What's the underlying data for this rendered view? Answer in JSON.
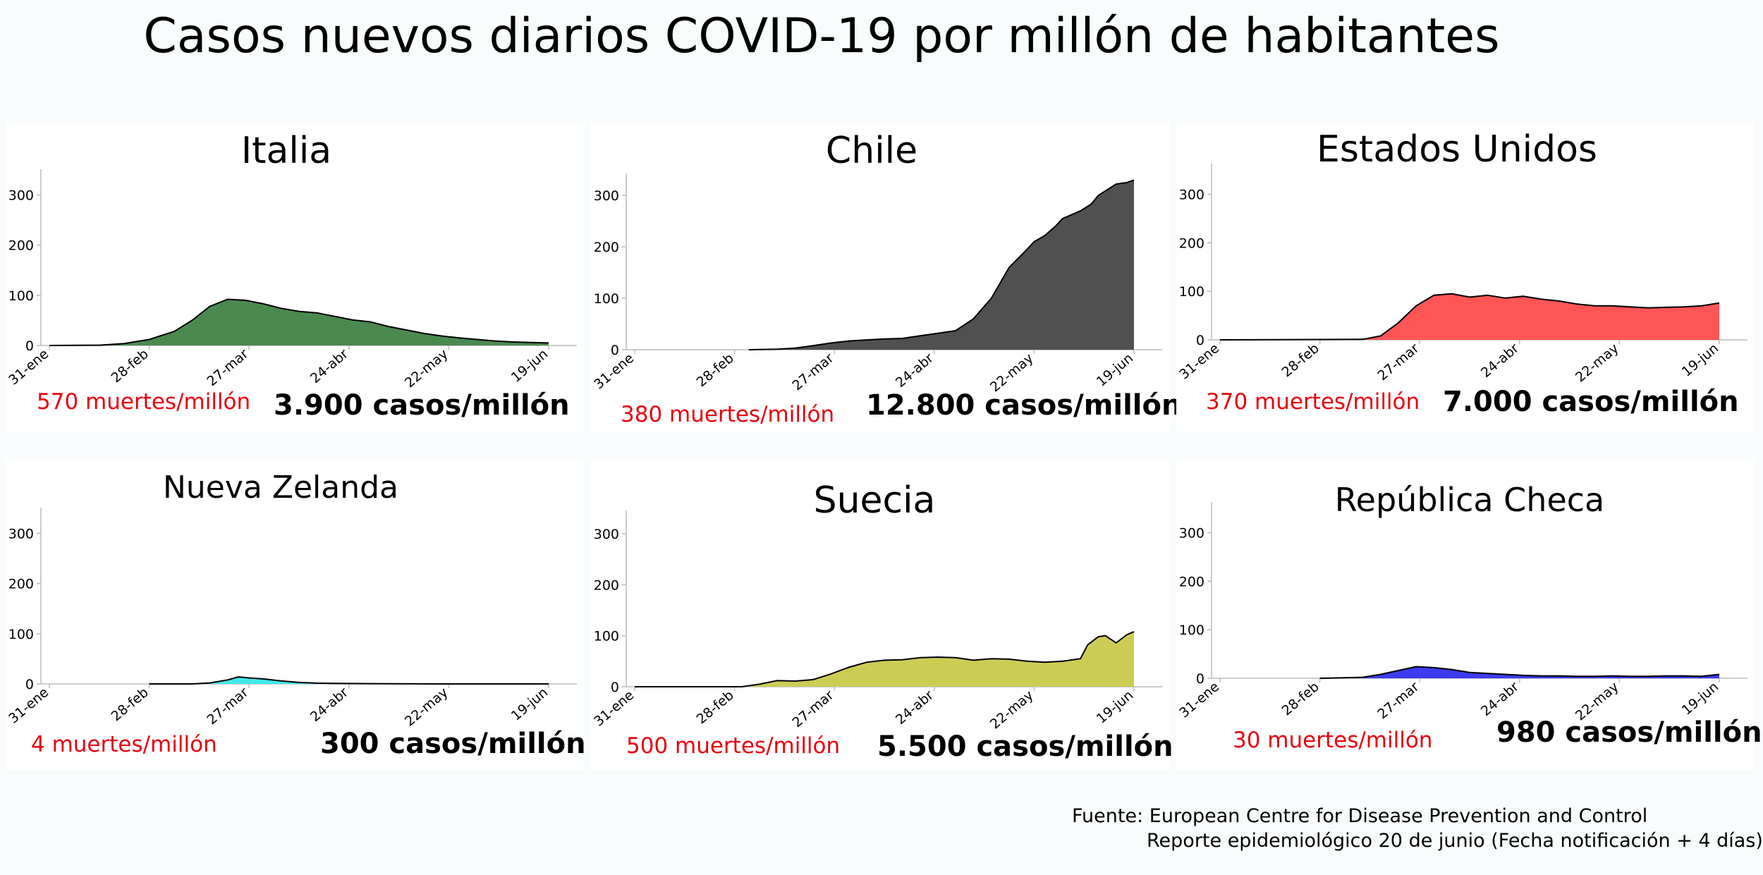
{
  "title": "Casos nuevos diarios COVID-19 por millón de habitantes",
  "source": {
    "line1": "Fuente: European Centre for Disease Prevention and Control",
    "line2": "Reporte epidemiológico 20 de junio (Fecha notificación + 4 días)"
  },
  "chart_data": [
    {
      "type": "area",
      "title": "Italia",
      "color": "#4a8a4f",
      "x_ticks": [
        "31-ene",
        "28-feb",
        "27-mar",
        "24-abr",
        "22-may",
        "19-jun"
      ],
      "y_ticks": [
        0,
        100,
        200,
        300
      ],
      "ylim": [
        0,
        340
      ],
      "x_days": [
        0,
        14,
        21,
        28,
        35,
        40,
        45,
        50,
        55,
        60,
        65,
        70,
        75,
        80,
        85,
        90,
        95,
        100,
        105,
        110,
        115,
        120,
        125,
        130,
        135,
        140
      ],
      "values": [
        0,
        0.5,
        4,
        12,
        28,
        50,
        78,
        92,
        90,
        83,
        74,
        68,
        65,
        58,
        51,
        47,
        38,
        31,
        24,
        19,
        15,
        12,
        9,
        7,
        6,
        5
      ],
      "deaths": "570 muertes/millón",
      "cases": "3.900 casos/millón"
    },
    {
      "type": "area",
      "title": "Chile",
      "color": "#505050",
      "x_ticks": [
        "31-ene",
        "28-feb",
        "27-mar",
        "24-abr",
        "22-may",
        "19-jun"
      ],
      "y_ticks": [
        0,
        100,
        200,
        300
      ],
      "ylim": [
        0,
        340
      ],
      "x_days": [
        32,
        40,
        45,
        50,
        55,
        60,
        65,
        70,
        75,
        80,
        85,
        90,
        95,
        100,
        105,
        110,
        112,
        115,
        118,
        120,
        125,
        128,
        130,
        135,
        138,
        140
      ],
      "values": [
        0,
        1,
        3,
        8,
        13,
        17,
        19,
        21,
        22,
        27,
        32,
        37,
        60,
        100,
        160,
        195,
        210,
        222,
        240,
        255,
        270,
        283,
        300,
        322,
        325,
        330
      ],
      "deaths": "380 muertes/millón",
      "cases": "12.800 casos/millón"
    },
    {
      "type": "area",
      "title": "Estados Unidos",
      "color": "#ff5555",
      "x_ticks": [
        "31-ene",
        "28-feb",
        "27-mar",
        "24-abr",
        "22-may",
        "19-jun"
      ],
      "y_ticks": [
        0,
        100,
        200,
        300
      ],
      "ylim": [
        0,
        340
      ],
      "x_days": [
        0,
        40,
        45,
        50,
        55,
        60,
        65,
        70,
        75,
        80,
        85,
        90,
        95,
        100,
        105,
        110,
        115,
        120,
        125,
        130,
        135,
        140
      ],
      "values": [
        0,
        1,
        8,
        35,
        70,
        92,
        95,
        88,
        92,
        86,
        90,
        84,
        80,
        74,
        70,
        70,
        68,
        66,
        67,
        68,
        70,
        76
      ],
      "deaths": "370 muertes/millón",
      "cases": "7.000 casos/millón"
    },
    {
      "type": "area",
      "title": "Nueva Zelanda",
      "color": "#40e8e8",
      "x_ticks": [
        "31-ene",
        "28-feb",
        "27-mar",
        "24-abr",
        "22-may",
        "19-jun"
      ],
      "y_ticks": [
        0,
        100,
        200,
        300
      ],
      "ylim": [
        0,
        340
      ],
      "x_days": [
        28,
        40,
        45,
        50,
        53,
        56,
        60,
        65,
        70,
        75,
        80,
        90,
        110,
        140
      ],
      "values": [
        0,
        0,
        2,
        8,
        14,
        12,
        10,
        6,
        3,
        1.5,
        1,
        0.5,
        0,
        0
      ],
      "deaths": "4 muertes/millón",
      "cases": "300 casos/millón"
    },
    {
      "type": "area",
      "title": "Suecia",
      "color": "#cccc55",
      "x_ticks": [
        "31-ene",
        "28-feb",
        "27-mar",
        "24-abr",
        "22-may",
        "19-jun"
      ],
      "y_ticks": [
        0,
        100,
        200,
        300
      ],
      "ylim": [
        0,
        340
      ],
      "x_days": [
        0,
        30,
        35,
        40,
        45,
        50,
        55,
        60,
        65,
        70,
        75,
        80,
        85,
        90,
        95,
        100,
        105,
        110,
        115,
        120,
        125,
        127,
        130,
        132,
        135,
        138,
        140
      ],
      "values": [
        0,
        0,
        5,
        12,
        11,
        14,
        25,
        38,
        48,
        52,
        53,
        57,
        58,
        57,
        52,
        55,
        54,
        50,
        48,
        50,
        55,
        82,
        98,
        100,
        86,
        102,
        108
      ],
      "deaths": "500 muertes/millón",
      "cases": "5.500 casos/millón"
    },
    {
      "type": "area",
      "title": "República Checa",
      "color": "#3c3cf0",
      "x_ticks": [
        "31-ene",
        "28-feb",
        "27-mar",
        "24-abr",
        "22-may",
        "19-jun"
      ],
      "y_ticks": [
        0,
        100,
        200,
        300
      ],
      "ylim": [
        0,
        340
      ],
      "x_days": [
        28,
        40,
        45,
        50,
        55,
        60,
        65,
        70,
        75,
        80,
        85,
        90,
        95,
        100,
        105,
        110,
        115,
        120,
        125,
        130,
        135,
        140
      ],
      "values": [
        0,
        2,
        8,
        16,
        24,
        22,
        18,
        12,
        10,
        8,
        6,
        5,
        5,
        4,
        4,
        5,
        4,
        4,
        5,
        5,
        4,
        8
      ],
      "deaths": "30 muertes/millón",
      "cases": "980 casos/millón"
    }
  ]
}
